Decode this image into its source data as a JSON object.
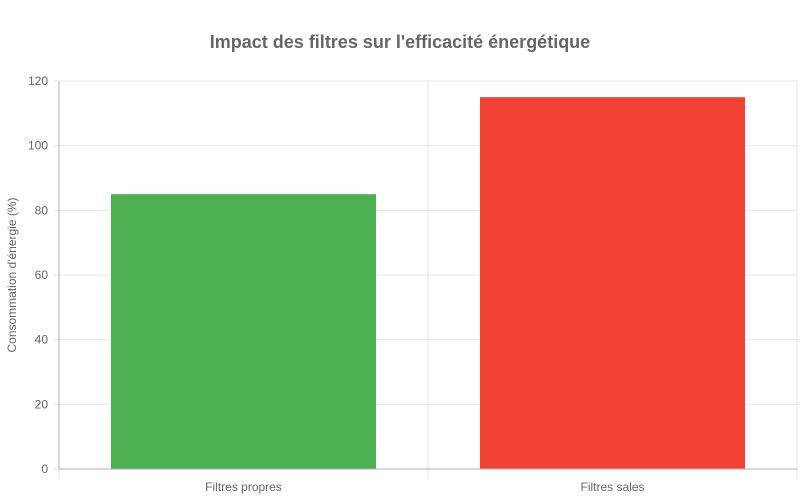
{
  "chart_data": {
    "type": "bar",
    "title": "Impact des filtres sur l'efficacité énergétique",
    "xlabel": "",
    "ylabel": "Consommation d'énergie (%)",
    "categories": [
      "Filtres propres",
      "Filtres sales"
    ],
    "values": [
      85,
      115
    ],
    "colors": [
      "#4caf50",
      "#f44336"
    ],
    "ylim": [
      0,
      120
    ],
    "yticks": [
      0,
      20,
      40,
      60,
      80,
      100,
      120
    ],
    "grid": true,
    "legend": "none"
  }
}
